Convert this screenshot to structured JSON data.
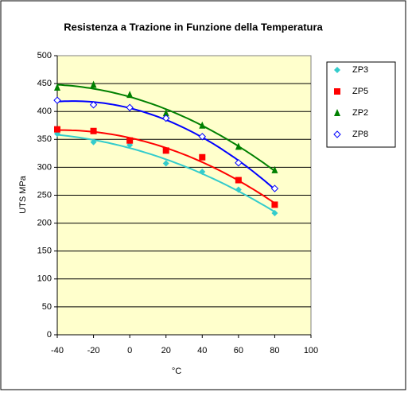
{
  "chart_data": {
    "type": "scatter",
    "title": "Resistenza a Trazione in Funzione della Temperatura",
    "xlabel": "°C",
    "ylabel": "UTS MPa",
    "xlim": [
      -40,
      100
    ],
    "xticks": [
      -40,
      -20,
      0,
      20,
      40,
      60,
      80,
      100
    ],
    "ylim": [
      0,
      500
    ],
    "yticks": [
      0,
      50,
      100,
      150,
      200,
      250,
      300,
      350,
      400,
      450,
      500
    ],
    "grid": true,
    "trendline": "polynomial",
    "x": [
      -40,
      -20,
      0,
      20,
      40,
      60,
      80
    ],
    "series": [
      {
        "name": "ZP3",
        "color": "#33cccc",
        "marker": "diamond",
        "values": [
          360,
          345,
          340,
          307,
          292,
          260,
          218
        ]
      },
      {
        "name": "ZP5",
        "color": "#ff0000",
        "marker": "square",
        "values": [
          368,
          365,
          348,
          330,
          318,
          277,
          233
        ]
      },
      {
        "name": "ZP2",
        "color": "#008000",
        "marker": "triangle",
        "values": [
          443,
          448,
          430,
          397,
          375,
          337,
          295
        ]
      },
      {
        "name": "ZP8",
        "color": "#0000ff",
        "marker": "open-diamond",
        "values": [
          420,
          412,
          407,
          388,
          355,
          308,
          262
        ]
      }
    ]
  }
}
